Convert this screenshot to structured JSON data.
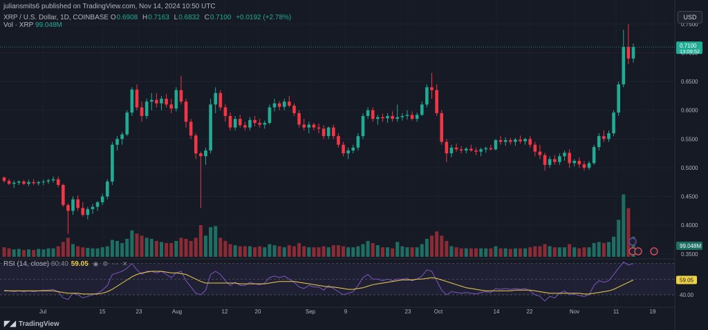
{
  "header": {
    "publisher": "juliansmits6 published on TradingView.com, Nov 14, 2024 10:50 UTC",
    "symbol": "XRP / U.S. Dollar, 1D, COINBASE",
    "open_label": "O",
    "open": "0.6908",
    "high_label": "H",
    "high": "0.7163",
    "low_label": "L",
    "low": "0.6832",
    "close_label": "C",
    "close": "0.7100",
    "change": "+0.0192 (+2.78%)",
    "volume_label": "Vol · XRP",
    "volume": "99.048M",
    "rsi_label": "RSI (14, close)",
    "rsi_params": "80:40",
    "rsi_value": "59.05",
    "rsi_icons": [
      "eye-icon",
      "settings-icon",
      "more-icon",
      "close-icon"
    ]
  },
  "currency_button": "USD",
  "brand": "TradingView",
  "colors": {
    "background": "#161a25",
    "up": "#22ab94",
    "down": "#f23645",
    "rsi_line": "#7e57c2",
    "rsi_ma": "#f0d248"
  },
  "chart_data": [
    {
      "type": "candlestick",
      "title": "XRP / U.S. Dollar, 1D, COINBASE",
      "price_axis": {
        "ticks": [
          "0.7500",
          "0.7000",
          "0.6500",
          "0.6000",
          "0.5500",
          "0.5000",
          "0.4500",
          "0.4000",
          "0.3500"
        ],
        "range": [
          0.345,
          0.775
        ]
      },
      "time_axis": {
        "ticks": [
          "Jul",
          "15",
          "23",
          "Aug",
          "12",
          "20",
          "Sep",
          "9",
          "23",
          "Oct",
          "14",
          "22",
          "Nov",
          "11",
          "19"
        ]
      },
      "last_price_label": "0.7100",
      "countdown_label": "13:09:52",
      "volume_label": "99.048M",
      "volume_max": 120,
      "candles": [
        [
          0.483,
          0.485,
          0.474,
          0.477
        ],
        [
          0.477,
          0.481,
          0.47,
          0.472
        ],
        [
          0.472,
          0.478,
          0.465,
          0.474
        ],
        [
          0.474,
          0.478,
          0.47,
          0.476
        ],
        [
          0.476,
          0.479,
          0.47,
          0.472
        ],
        [
          0.472,
          0.479,
          0.468,
          0.475
        ],
        [
          0.475,
          0.48,
          0.47,
          0.473
        ],
        [
          0.473,
          0.477,
          0.469,
          0.475
        ],
        [
          0.475,
          0.479,
          0.47,
          0.476
        ],
        [
          0.476,
          0.481,
          0.472,
          0.478
        ],
        [
          0.478,
          0.485,
          0.474,
          0.48
        ],
        [
          0.48,
          0.485,
          0.466,
          0.47
        ],
        [
          0.47,
          0.472,
          0.432,
          0.435
        ],
        [
          0.435,
          0.438,
          0.385,
          0.425
        ],
        [
          0.425,
          0.45,
          0.418,
          0.445
        ],
        [
          0.445,
          0.452,
          0.425,
          0.43
        ],
        [
          0.43,
          0.44,
          0.415,
          0.418
        ],
        [
          0.418,
          0.432,
          0.41,
          0.428
        ],
        [
          0.428,
          0.437,
          0.42,
          0.432
        ],
        [
          0.432,
          0.442,
          0.425,
          0.44
        ],
        [
          0.44,
          0.455,
          0.435,
          0.45
        ],
        [
          0.45,
          0.48,
          0.445,
          0.476
        ],
        [
          0.476,
          0.545,
          0.47,
          0.54
        ],
        [
          0.54,
          0.555,
          0.53,
          0.55
        ],
        [
          0.55,
          0.562,
          0.54,
          0.558
        ],
        [
          0.558,
          0.6,
          0.555,
          0.596
        ],
        [
          0.596,
          0.64,
          0.59,
          0.636
        ],
        [
          0.636,
          0.645,
          0.6,
          0.605
        ],
        [
          0.605,
          0.615,
          0.58,
          0.59
        ],
        [
          0.59,
          0.62,
          0.585,
          0.615
        ],
        [
          0.615,
          0.63,
          0.6,
          0.618
        ],
        [
          0.618,
          0.63,
          0.605,
          0.612
        ],
        [
          0.612,
          0.625,
          0.6,
          0.62
        ],
        [
          0.62,
          0.628,
          0.605,
          0.61
        ],
        [
          0.61,
          0.62,
          0.595,
          0.603
        ],
        [
          0.603,
          0.64,
          0.598,
          0.635
        ],
        [
          0.635,
          0.66,
          0.61,
          0.615
        ],
        [
          0.615,
          0.62,
          0.57,
          0.58
        ],
        [
          0.58,
          0.585,
          0.55,
          0.556
        ],
        [
          0.556,
          0.56,
          0.515,
          0.525
        ],
        [
          0.525,
          0.528,
          0.43,
          0.52
        ],
        [
          0.52,
          0.535,
          0.505,
          0.53
        ],
        [
          0.53,
          0.62,
          0.525,
          0.61
        ],
        [
          0.61,
          0.64,
          0.595,
          0.63
        ],
        [
          0.63,
          0.635,
          0.6,
          0.605
        ],
        [
          0.605,
          0.61,
          0.58,
          0.59
        ],
        [
          0.59,
          0.596,
          0.565,
          0.57
        ],
        [
          0.57,
          0.59,
          0.565,
          0.585
        ],
        [
          0.585,
          0.592,
          0.57,
          0.574
        ],
        [
          0.574,
          0.58,
          0.565,
          0.57
        ],
        [
          0.57,
          0.588,
          0.565,
          0.583
        ],
        [
          0.583,
          0.59,
          0.572,
          0.578
        ],
        [
          0.578,
          0.585,
          0.57,
          0.575
        ],
        [
          0.575,
          0.582,
          0.568,
          0.578
        ],
        [
          0.578,
          0.61,
          0.575,
          0.605
        ],
        [
          0.605,
          0.62,
          0.598,
          0.612
        ],
        [
          0.612,
          0.616,
          0.6,
          0.606
        ],
        [
          0.606,
          0.62,
          0.6,
          0.615
        ],
        [
          0.615,
          0.625,
          0.605,
          0.608
        ],
        [
          0.608,
          0.612,
          0.59,
          0.595
        ],
        [
          0.595,
          0.6,
          0.57,
          0.575
        ],
        [
          0.575,
          0.585,
          0.565,
          0.57
        ],
        [
          0.57,
          0.58,
          0.56,
          0.575
        ],
        [
          0.575,
          0.578,
          0.565,
          0.57
        ],
        [
          0.57,
          0.577,
          0.56,
          0.568
        ],
        [
          0.568,
          0.574,
          0.55,
          0.555
        ],
        [
          0.555,
          0.572,
          0.55,
          0.57
        ],
        [
          0.57,
          0.575,
          0.55,
          0.555
        ],
        [
          0.555,
          0.56,
          0.535,
          0.54
        ],
        [
          0.54,
          0.545,
          0.52,
          0.525
        ],
        [
          0.525,
          0.535,
          0.515,
          0.53
        ],
        [
          0.53,
          0.54,
          0.525,
          0.535
        ],
        [
          0.535,
          0.56,
          0.53,
          0.555
        ],
        [
          0.555,
          0.595,
          0.55,
          0.59
        ],
        [
          0.59,
          0.605,
          0.585,
          0.6
        ],
        [
          0.6,
          0.605,
          0.58,
          0.585
        ],
        [
          0.585,
          0.592,
          0.575,
          0.588
        ],
        [
          0.588,
          0.594,
          0.58,
          0.586
        ],
        [
          0.586,
          0.595,
          0.578,
          0.59
        ],
        [
          0.59,
          0.598,
          0.58,
          0.585
        ],
        [
          0.585,
          0.61,
          0.58,
          0.588
        ],
        [
          0.588,
          0.595,
          0.582,
          0.59
        ],
        [
          0.59,
          0.6,
          0.584,
          0.592
        ],
        [
          0.592,
          0.598,
          0.582,
          0.585
        ],
        [
          0.585,
          0.596,
          0.58,
          0.592
        ],
        [
          0.592,
          0.615,
          0.59,
          0.61
        ],
        [
          0.61,
          0.645,
          0.605,
          0.64
        ],
        [
          0.64,
          0.665,
          0.62,
          0.635
        ],
        [
          0.635,
          0.645,
          0.59,
          0.595
        ],
        [
          0.595,
          0.6,
          0.54,
          0.545
        ],
        [
          0.545,
          0.55,
          0.51,
          0.525
        ],
        [
          0.525,
          0.54,
          0.518,
          0.535
        ],
        [
          0.535,
          0.542,
          0.528,
          0.532
        ],
        [
          0.532,
          0.538,
          0.525,
          0.53
        ],
        [
          0.53,
          0.536,
          0.525,
          0.533
        ],
        [
          0.533,
          0.54,
          0.528,
          0.53
        ],
        [
          0.53,
          0.535,
          0.522,
          0.528
        ],
        [
          0.528,
          0.535,
          0.52,
          0.532
        ],
        [
          0.532,
          0.537,
          0.526,
          0.534
        ],
        [
          0.534,
          0.54,
          0.53,
          0.532
        ],
        [
          0.532,
          0.55,
          0.53,
          0.548
        ],
        [
          0.548,
          0.555,
          0.54,
          0.545
        ],
        [
          0.545,
          0.553,
          0.538,
          0.548
        ],
        [
          0.548,
          0.552,
          0.54,
          0.545
        ],
        [
          0.545,
          0.552,
          0.538,
          0.549
        ],
        [
          0.549,
          0.556,
          0.542,
          0.546
        ],
        [
          0.546,
          0.552,
          0.54,
          0.55
        ],
        [
          0.55,
          0.555,
          0.535,
          0.54
        ],
        [
          0.54,
          0.545,
          0.52,
          0.528
        ],
        [
          0.528,
          0.54,
          0.515,
          0.522
        ],
        [
          0.522,
          0.526,
          0.495,
          0.505
        ],
        [
          0.505,
          0.52,
          0.5,
          0.515
        ],
        [
          0.515,
          0.522,
          0.505,
          0.51
        ],
        [
          0.51,
          0.525,
          0.505,
          0.52
        ],
        [
          0.52,
          0.53,
          0.512,
          0.526
        ],
        [
          0.526,
          0.532,
          0.5,
          0.508
        ],
        [
          0.508,
          0.515,
          0.502,
          0.512
        ],
        [
          0.512,
          0.518,
          0.5,
          0.506
        ],
        [
          0.506,
          0.512,
          0.495,
          0.5
        ],
        [
          0.5,
          0.512,
          0.496,
          0.508
        ],
        [
          0.508,
          0.54,
          0.505,
          0.536
        ],
        [
          0.536,
          0.56,
          0.53,
          0.555
        ],
        [
          0.555,
          0.565,
          0.545,
          0.55
        ],
        [
          0.55,
          0.565,
          0.545,
          0.56
        ],
        [
          0.56,
          0.6,
          0.555,
          0.596
        ],
        [
          0.596,
          0.65,
          0.59,
          0.645
        ],
        [
          0.645,
          0.74,
          0.64,
          0.71
        ],
        [
          0.71,
          0.75,
          0.68,
          0.69
        ],
        [
          0.69,
          0.716,
          0.683,
          0.71
        ]
      ],
      "volumes": [
        18,
        16,
        14,
        15,
        13,
        14,
        13,
        15,
        14,
        16,
        16,
        20,
        28,
        36,
        24,
        20,
        18,
        17,
        16,
        16,
        18,
        20,
        32,
        30,
        26,
        34,
        50,
        44,
        40,
        36,
        34,
        30,
        28,
        26,
        26,
        30,
        36,
        34,
        30,
        36,
        60,
        40,
        56,
        58,
        36,
        30,
        24,
        22,
        20,
        20,
        20,
        18,
        20,
        18,
        24,
        22,
        20,
        18,
        22,
        20,
        26,
        20,
        18,
        18,
        18,
        20,
        18,
        22,
        22,
        20,
        18,
        18,
        20,
        24,
        30,
        26,
        22,
        18,
        18,
        16,
        28,
        20,
        18,
        18,
        18,
        24,
        34,
        40,
        48,
        40,
        30,
        20,
        18,
        16,
        16,
        16,
        16,
        16,
        16,
        16,
        20,
        16,
        16,
        15,
        16,
        16,
        16,
        18,
        20,
        20,
        24,
        20,
        18,
        18,
        18,
        24,
        18,
        16,
        18,
        18,
        26,
        28,
        26,
        28,
        38,
        70,
        118,
        92,
        38
      ]
    },
    {
      "type": "line",
      "title": "RSI (14, close)",
      "y_ticks": [
        "40.00"
      ],
      "y_range": [
        25,
        85
      ],
      "bands": [
        80,
        60,
        40
      ],
      "value_label": "59.05",
      "series": [
        {
          "name": "RSI",
          "values": [
            46,
            45,
            44,
            45,
            44,
            45,
            44,
            45,
            46,
            46,
            47,
            44,
            36,
            34,
            42,
            40,
            36,
            38,
            40,
            42,
            46,
            52,
            66,
            68,
            70,
            74,
            80,
            72,
            66,
            70,
            70,
            68,
            70,
            66,
            62,
            68,
            70,
            58,
            50,
            42,
            40,
            46,
            66,
            70,
            66,
            58,
            52,
            56,
            52,
            52,
            56,
            54,
            53,
            55,
            62,
            64,
            62,
            64,
            60,
            56,
            50,
            48,
            52,
            50,
            50,
            46,
            52,
            48,
            44,
            40,
            42,
            44,
            52,
            62,
            66,
            60,
            60,
            58,
            60,
            58,
            60,
            60,
            61,
            58,
            60,
            64,
            72,
            70,
            58,
            46,
            40,
            44,
            43,
            42,
            43,
            42,
            41,
            43,
            44,
            43,
            48,
            47,
            48,
            47,
            48,
            47,
            48,
            45,
            40,
            38,
            32,
            38,
            36,
            42,
            45,
            40,
            41,
            39,
            38,
            40,
            52,
            58,
            56,
            58,
            66,
            74,
            82,
            78,
            80
          ]
        },
        {
          "name": "RSI-based MA",
          "values": [
            45,
            45,
            45,
            45,
            45,
            45,
            45,
            45,
            45,
            45,
            45,
            44,
            43,
            42,
            42,
            42,
            41,
            41,
            41,
            41,
            42,
            44,
            47,
            51,
            55,
            59,
            63,
            66,
            68,
            69,
            70,
            70,
            70,
            69,
            68,
            68,
            67,
            66,
            63,
            60,
            57,
            55,
            55,
            55,
            55,
            55,
            55,
            55,
            54,
            54,
            54,
            54,
            54,
            54,
            55,
            56,
            57,
            57,
            57,
            57,
            56,
            55,
            54,
            53,
            52,
            51,
            50,
            50,
            49,
            48,
            47,
            47,
            48,
            49,
            51,
            53,
            54,
            55,
            56,
            57,
            58,
            59,
            59,
            59,
            60,
            60,
            61,
            62,
            61,
            59,
            57,
            55,
            53,
            51,
            49,
            48,
            47,
            46,
            45,
            45,
            45,
            45,
            45,
            45,
            46,
            46,
            46,
            46,
            45,
            44,
            43,
            42,
            42,
            42,
            42,
            42,
            42,
            42,
            41,
            41,
            42,
            43,
            44,
            45,
            47,
            50,
            53,
            56,
            59
          ]
        }
      ]
    }
  ]
}
